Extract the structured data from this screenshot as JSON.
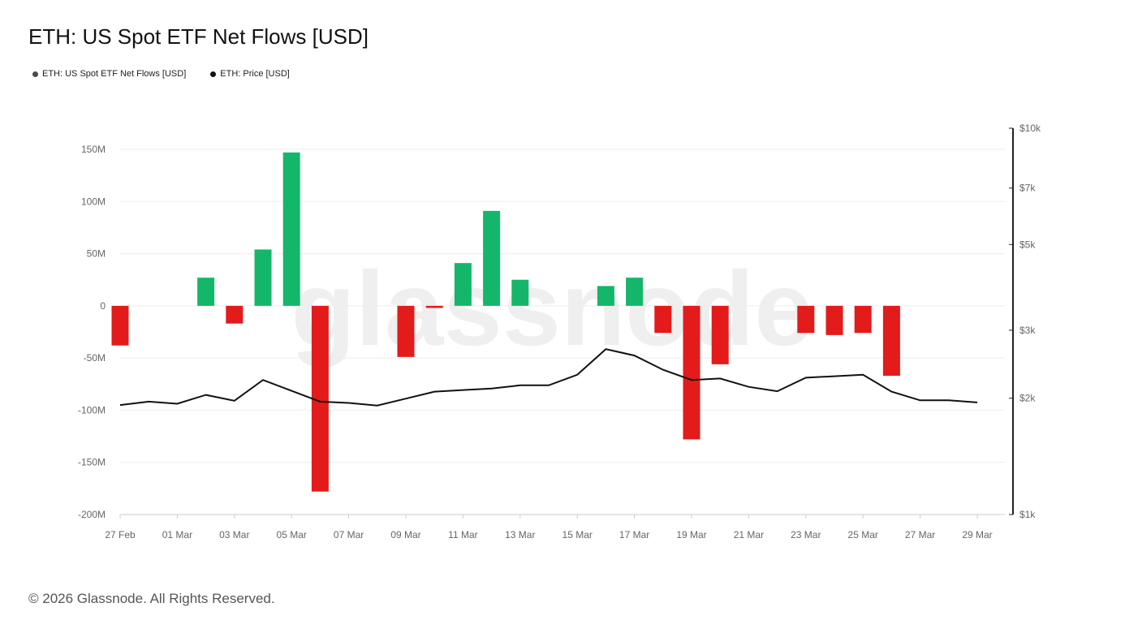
{
  "title": "ETH: US Spot ETF Net Flows [USD]",
  "footer": "© 2026 Glassnode. All Rights Reserved.",
  "watermark": "glassnode",
  "legend": [
    {
      "label": "ETH: US Spot ETF Net Flows [USD]",
      "color": "#4a4a4a"
    },
    {
      "label": "ETH: Price [USD]",
      "color": "#111111"
    }
  ],
  "colors": {
    "positive": "#14b76a",
    "negative": "#e31b1b",
    "line": "#111111",
    "grid": "#eeeeee",
    "axis": "#222222"
  },
  "chart_data": {
    "type": "bar+line",
    "title": "ETH: US Spot ETF Net Flows [USD]",
    "x": [
      "27 Feb",
      "28 Feb",
      "01 Mar",
      "02 Mar",
      "03 Mar",
      "04 Mar",
      "05 Mar",
      "06 Mar",
      "07 Mar",
      "08 Mar",
      "09 Mar",
      "10 Mar",
      "11 Mar",
      "12 Mar",
      "13 Mar",
      "14 Mar",
      "15 Mar",
      "16 Mar",
      "17 Mar",
      "18 Mar",
      "19 Mar",
      "20 Mar",
      "21 Mar",
      "22 Mar",
      "23 Mar",
      "24 Mar",
      "25 Mar",
      "26 Mar",
      "27 Mar",
      "28 Mar",
      "29 Mar"
    ],
    "x_tick_labels": [
      "27 Feb",
      "01 Mar",
      "03 Mar",
      "05 Mar",
      "07 Mar",
      "09 Mar",
      "11 Mar",
      "13 Mar",
      "15 Mar",
      "17 Mar",
      "19 Mar",
      "21 Mar",
      "23 Mar",
      "25 Mar",
      "27 Mar",
      "29 Mar"
    ],
    "series": [
      {
        "name": "ETH: US Spot ETF Net Flows [USD]",
        "type": "bar",
        "axis": "left",
        "values": [
          -38,
          0,
          0,
          27,
          -17,
          54,
          147,
          -178,
          0,
          0,
          -49,
          -2,
          41,
          91,
          25,
          0,
          0,
          19,
          27,
          -26,
          -128,
          -56,
          0,
          0,
          -26,
          -28,
          -26,
          -67,
          0,
          0,
          0
        ]
      },
      {
        "name": "ETH: Price [USD]",
        "type": "line",
        "axis": "right",
        "values": [
          1920,
          1960,
          1935,
          2040,
          1970,
          2230,
          2090,
          1960,
          1945,
          1915,
          1995,
          2080,
          2100,
          2120,
          2160,
          2160,
          2300,
          2680,
          2580,
          2370,
          2230,
          2250,
          2140,
          2085,
          2260,
          2280,
          2300,
          2080,
          1975,
          1975,
          1950
        ]
      }
    ],
    "left_axis": {
      "min": -200,
      "max": 150,
      "unit": "M",
      "ticks": [
        "150M",
        "100M",
        "50M",
        "0",
        "-50M",
        "-100M",
        "-150M",
        "-200M"
      ],
      "tick_values": [
        150,
        100,
        50,
        0,
        -50,
        -100,
        -150,
        -200
      ]
    },
    "right_axis": {
      "scale": "log",
      "min": 1000,
      "max": 10000,
      "ticks": [
        "$10k",
        "$7k",
        "$5k",
        "$3k",
        "$2k",
        "$1k"
      ],
      "tick_values": [
        10000,
        7000,
        5000,
        3000,
        2000,
        1000
      ]
    }
  }
}
